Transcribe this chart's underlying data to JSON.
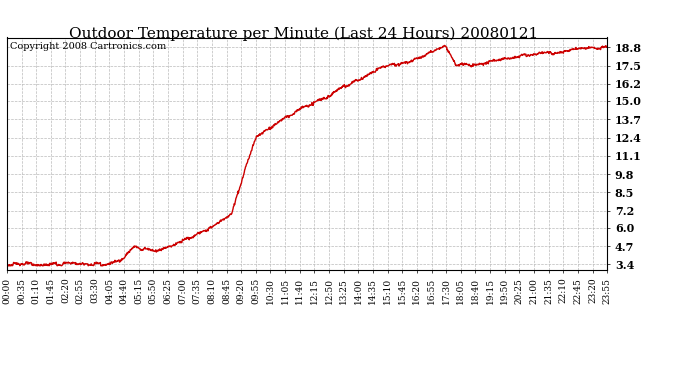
{
  "title": "Outdoor Temperature per Minute (Last 24 Hours) 20080121",
  "copyright_text": "Copyright 2008 Cartronics.com",
  "line_color": "#cc0000",
  "background_color": "#ffffff",
  "plot_bg_color": "#ffffff",
  "grid_color": "#bbbbbb",
  "yticks": [
    3.4,
    4.7,
    6.0,
    7.2,
    8.5,
    9.8,
    11.1,
    12.4,
    13.7,
    15.0,
    16.2,
    17.5,
    18.8
  ],
  "ylim": [
    3.0,
    19.5
  ],
  "xtick_labels": [
    "00:00",
    "00:35",
    "01:10",
    "01:45",
    "02:20",
    "02:55",
    "03:30",
    "04:05",
    "04:40",
    "05:15",
    "05:50",
    "06:25",
    "07:00",
    "07:35",
    "08:10",
    "08:45",
    "09:20",
    "09:55",
    "10:30",
    "11:05",
    "11:40",
    "12:15",
    "12:50",
    "13:25",
    "14:00",
    "14:35",
    "15:10",
    "15:45",
    "16:20",
    "16:55",
    "17:30",
    "18:05",
    "18:40",
    "19:15",
    "19:50",
    "20:25",
    "21:00",
    "21:35",
    "22:10",
    "22:45",
    "23:20",
    "23:55"
  ],
  "title_fontsize": 11,
  "copyright_fontsize": 7,
  "tick_fontsize": 6.5,
  "ytick_fontsize": 8,
  "line_width": 1.0
}
